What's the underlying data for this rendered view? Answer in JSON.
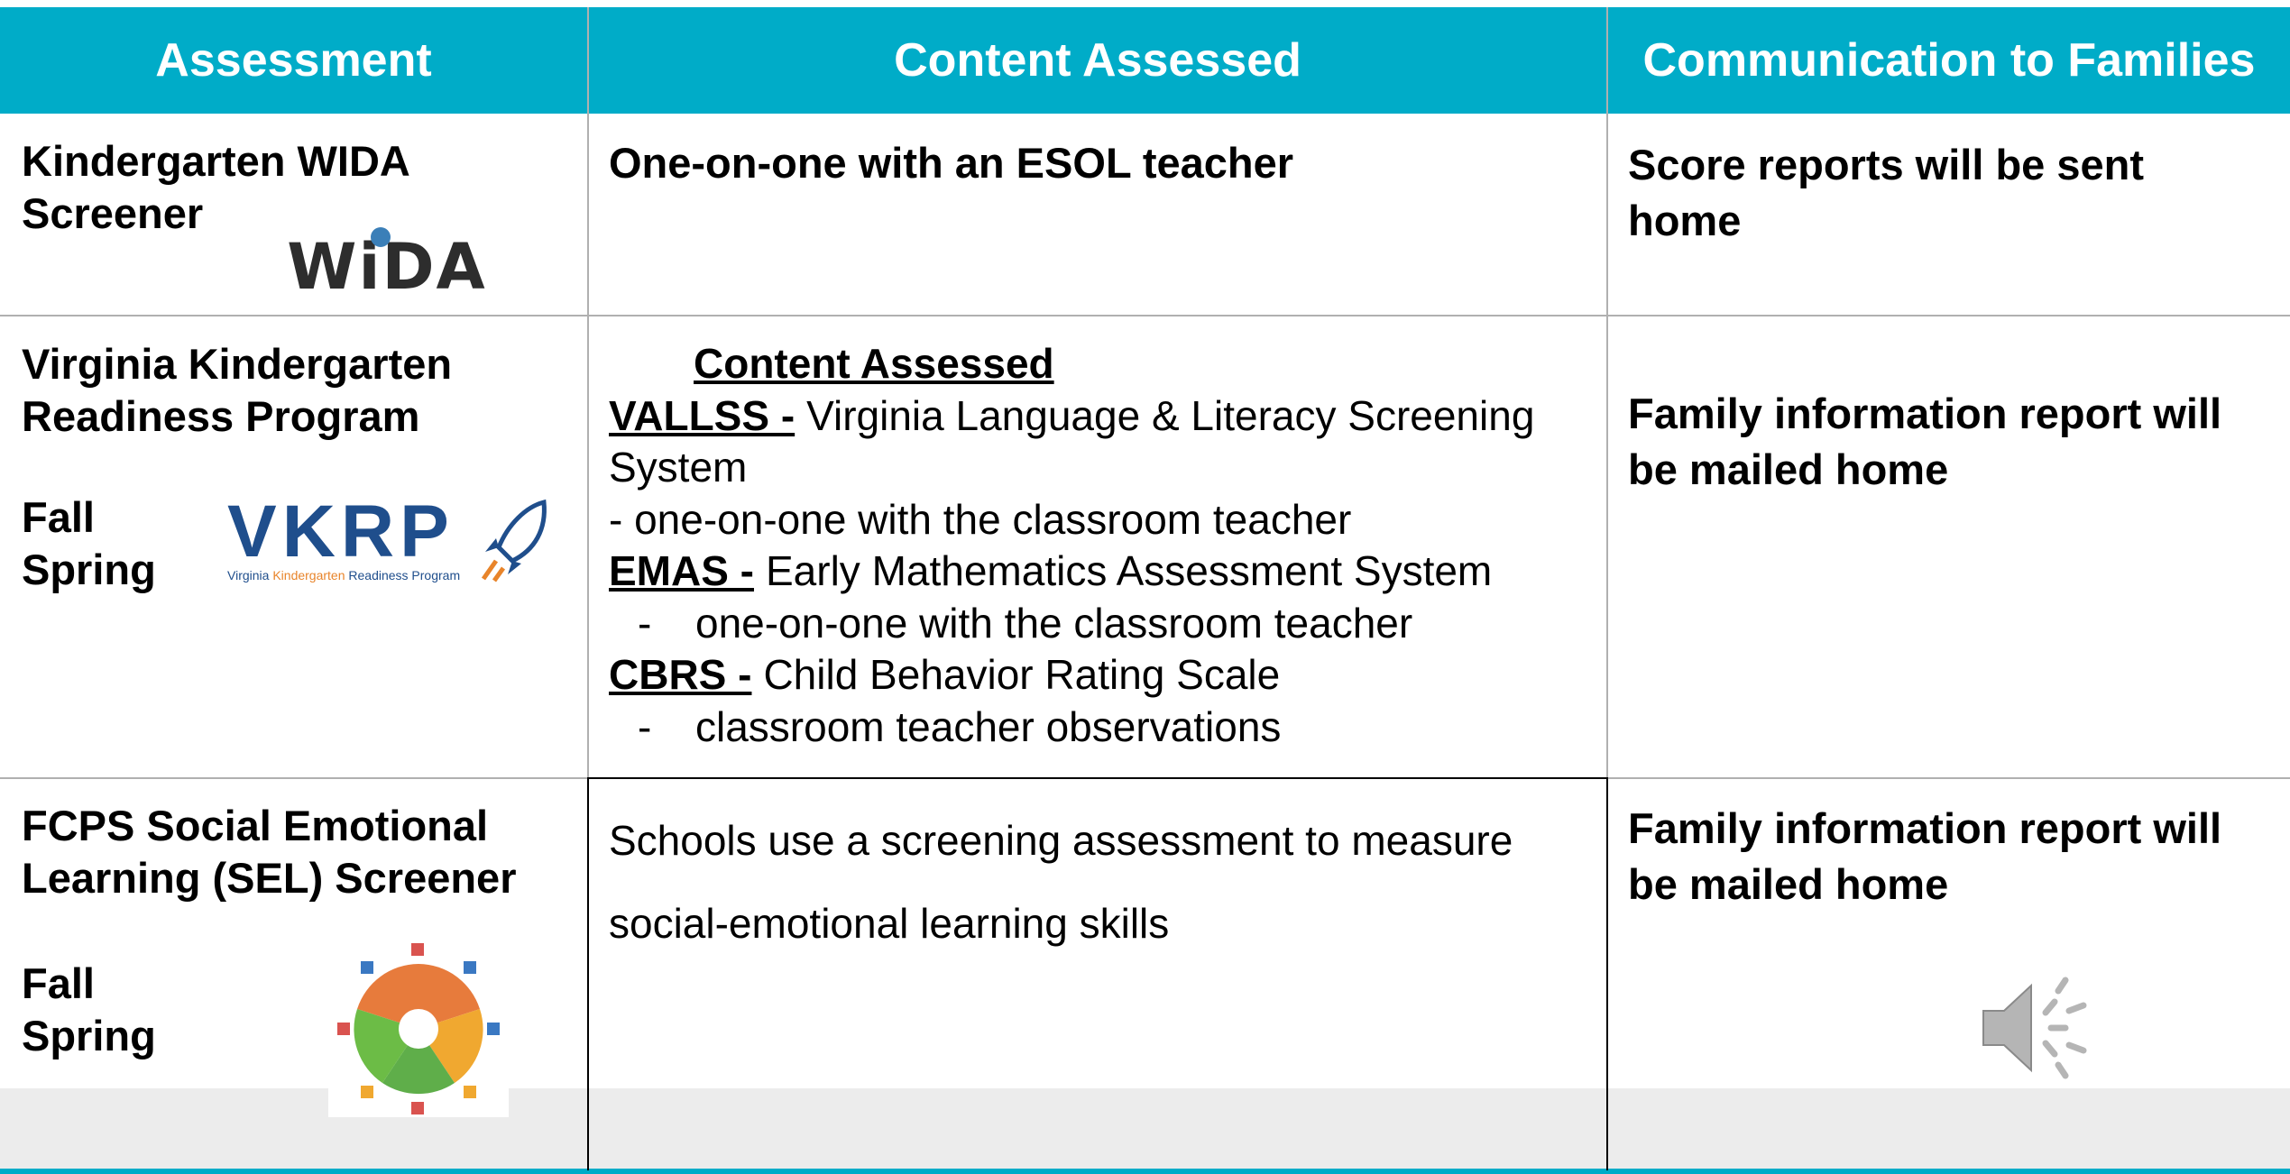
{
  "table": {
    "headers": [
      "Assessment",
      "Content Assessed",
      "Communication to Families"
    ],
    "rows": [
      {
        "assessment": "Kindergarten WIDA Screener",
        "logo": "WiDA",
        "content": "One-on-one with an ESOL teacher",
        "communication": "Score reports will be sent home"
      },
      {
        "assessment": "Virginia Kindergarten Readiness Program",
        "seasons": [
          "Fall",
          "Spring"
        ],
        "logo": "VKRP",
        "logo_caption": [
          "Virginia",
          "Kindergarten",
          "Readiness Program"
        ],
        "content_title": "Content Assessed",
        "content_items": [
          {
            "term": "VALLSS -",
            "text": "Virginia Language & Literacy Screening System",
            "note": "- one-on-one with the classroom teacher"
          },
          {
            "term": "EMAS -",
            "text": "Early Mathematics Assessment System",
            "bullet": {
              "marker": "-",
              "text": "one-on-one with the classroom teacher"
            }
          },
          {
            "term": "CBRS -",
            "text": "Child Behavior Rating Scale",
            "bullet": {
              "marker": "-",
              "text": "classroom teacher observations"
            }
          }
        ],
        "communication": "Family information report will be mailed home"
      },
      {
        "assessment": "FCPS Social Emotional Learning (SEL) Screener",
        "seasons": [
          "Fall",
          "Spring"
        ],
        "content": "Schools use a screening assessment to measure social-emotional learning skills",
        "communication": "Family information report will be mailed home"
      }
    ]
  }
}
